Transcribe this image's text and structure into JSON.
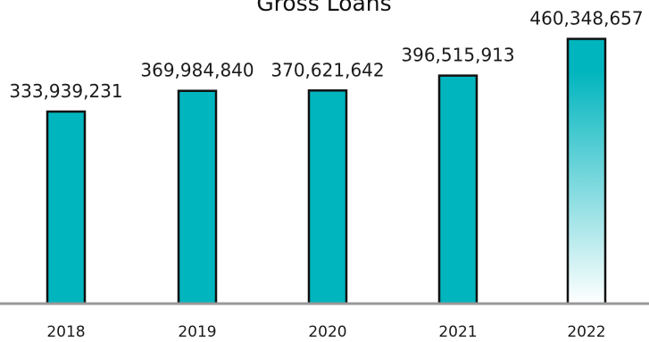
{
  "chart_data": {
    "type": "bar",
    "title": "Gross Loans",
    "categories": [
      "2018",
      "2019",
      "2020",
      "2021",
      "2022"
    ],
    "values": [
      333939231,
      369984840,
      370621642,
      396515913,
      460348657
    ],
    "value_labels": [
      "333,939,231",
      "369,984,840",
      "370,621,642",
      "396,515,913",
      "460,348,657"
    ],
    "xlabel": "",
    "ylabel": "",
    "ylim": [
      0,
      500000000
    ],
    "grid": false,
    "legend": "none"
  },
  "colors": {
    "bar_fill": "#00b5be",
    "bar_border": "#111111",
    "gradient_end": "#ffffff",
    "axis": "#999999"
  }
}
